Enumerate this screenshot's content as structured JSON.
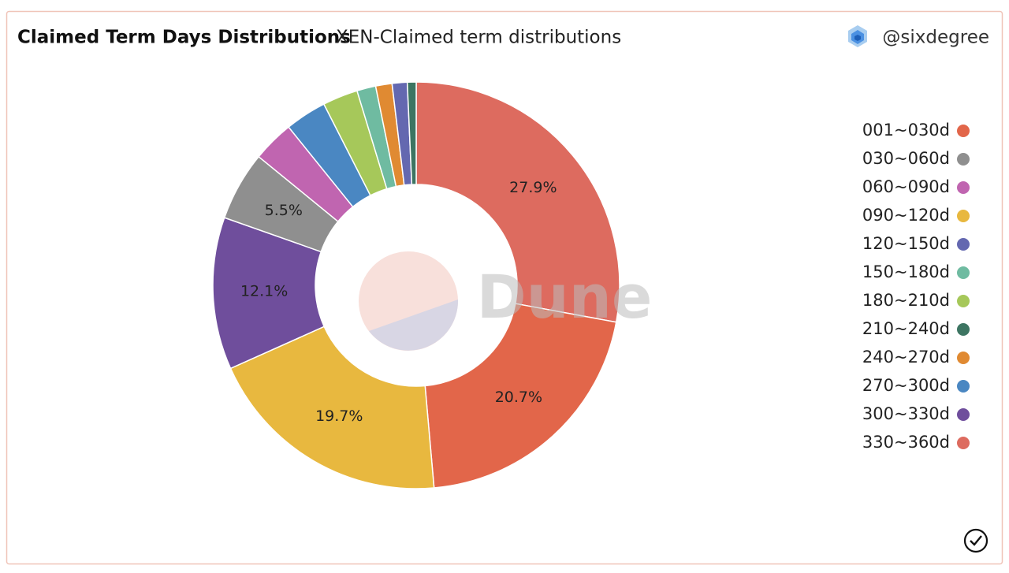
{
  "header": {
    "title": "Claimed Term Days Distributions",
    "subtitle": "XEN-Claimed term distributions",
    "author": "@sixdegree"
  },
  "watermark": "Dune",
  "chart_data": {
    "type": "donut",
    "categories": [
      "330~360d",
      "001~030d",
      "090~120d",
      "300~330d",
      "030~060d",
      "060~090d",
      "270~300d",
      "180~210d",
      "150~180d",
      "240~270d",
      "120~150d",
      "210~240d"
    ],
    "values": [
      27.9,
      20.7,
      19.7,
      12.1,
      5.5,
      3.3,
      3.3,
      2.8,
      1.5,
      1.3,
      1.2,
      0.7
    ],
    "value_labels": [
      "27.9%",
      "20.7%",
      "19.7%",
      "12.1%",
      "5.5%",
      null,
      null,
      null,
      null,
      null,
      null,
      null
    ],
    "colors": [
      "#dd6b5f",
      "#e2664a",
      "#e8b83f",
      "#6f4e9c",
      "#8f8f8f",
      "#c065b0",
      "#4a87c2",
      "#a6c85a",
      "#6fbba1",
      "#e08a32",
      "#6468b0",
      "#3d7562"
    ],
    "legend": "right"
  }
}
